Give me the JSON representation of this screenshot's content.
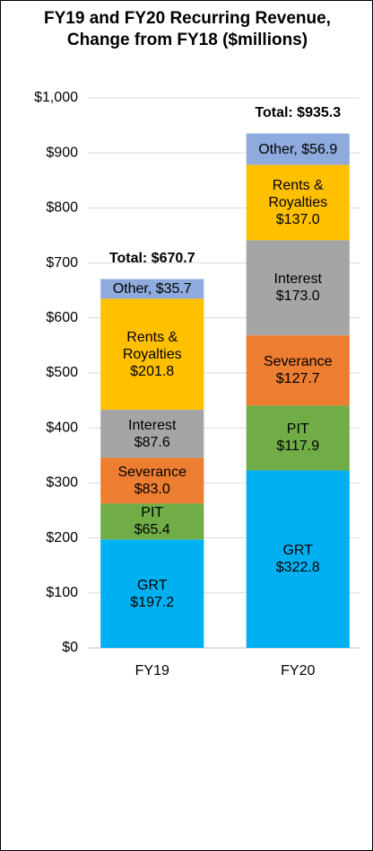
{
  "chart_data": {
    "type": "stacked_bar",
    "title": "FY19 and FY20 Recurring Revenue, Change from FY18 ($millions)",
    "categories": [
      "FY19",
      "FY20"
    ],
    "series": [
      {
        "name": "GRT",
        "color": "#00b0f0",
        "values": [
          197.2,
          322.8
        ],
        "value_labels": [
          "$197.2",
          "$322.8"
        ]
      },
      {
        "name": "PIT",
        "color": "#70ad47",
        "values": [
          65.4,
          117.9
        ],
        "value_labels": [
          "$65.4",
          "$117.9"
        ]
      },
      {
        "name": "Severance",
        "color": "#ed7d31",
        "values": [
          83.0,
          127.7
        ],
        "value_labels": [
          "$83.0",
          "$127.7"
        ]
      },
      {
        "name": "Interest",
        "color": "#a5a5a5",
        "values": [
          87.6,
          173.0
        ],
        "value_labels": [
          "$87.6",
          "$173.0"
        ]
      },
      {
        "name": "Rents & Royalties",
        "color": "#ffc000",
        "values": [
          201.8,
          137.0
        ],
        "value_labels": [
          "$201.8",
          "$137.0"
        ]
      },
      {
        "name": "Other",
        "color": "#8faadc",
        "values": [
          35.7,
          56.9
        ],
        "value_labels": [
          "Other, $35.7",
          "Other, $56.9"
        ],
        "label_inline": true
      }
    ],
    "totals": {
      "values": [
        670.7,
        935.3
      ],
      "value_labels": [
        "Total: $670.7",
        "Total: $935.3"
      ]
    },
    "ylim": [
      0,
      1000
    ],
    "yticks": [
      {
        "value": 0,
        "label": "$0"
      },
      {
        "value": 100,
        "label": "$100"
      },
      {
        "value": 200,
        "label": "$200"
      },
      {
        "value": 300,
        "label": "$300"
      },
      {
        "value": 400,
        "label": "$400"
      },
      {
        "value": 500,
        "label": "$500"
      },
      {
        "value": 600,
        "label": "$600"
      },
      {
        "value": 700,
        "label": "$700"
      },
      {
        "value": 800,
        "label": "$800"
      },
      {
        "value": 900,
        "label": "$900"
      },
      {
        "value": 1000,
        "label": "$1,000"
      }
    ],
    "grid": true
  }
}
